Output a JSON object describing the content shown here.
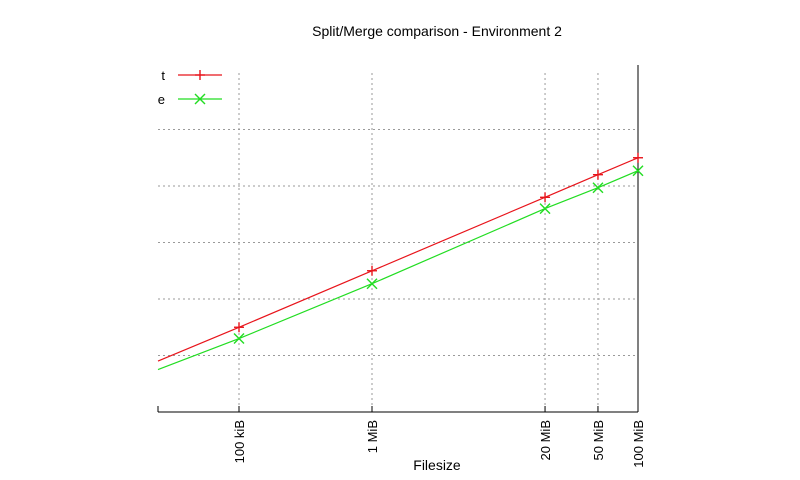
{
  "chart_data": {
    "type": "line",
    "title": "Split/Merge comparison - Environment 2",
    "xlabel": "Filesize",
    "ylabel": "",
    "x_scale": "log",
    "x_ticks": [
      {
        "value": 0.1,
        "label": "100 kiB"
      },
      {
        "value": 1,
        "label": "1 MiB"
      },
      {
        "value": 20,
        "label": "20 MiB"
      },
      {
        "value": 50,
        "label": "50 MiB"
      },
      {
        "value": 100,
        "label": "100 MiB"
      }
    ],
    "xlim": [
      0.0246,
      100
    ],
    "ylim": [
      0,
      6
    ],
    "grid": true,
    "legend": "top-left",
    "series": [
      {
        "name": "t",
        "color": "#e8141b",
        "marker": "plus",
        "x": [
          0.0246,
          0.1,
          1,
          20,
          50,
          100
        ],
        "y": [
          0.9,
          1.5,
          2.5,
          3.8,
          4.2,
          4.5
        ],
        "markers_at": [
          0.1,
          1,
          20,
          50,
          100
        ]
      },
      {
        "name": "e",
        "color": "#22dd22",
        "marker": "cross",
        "x": [
          0.0246,
          0.1,
          1,
          20,
          50,
          100
        ],
        "y": [
          0.75,
          1.3,
          2.27,
          3.6,
          3.97,
          4.27
        ],
        "markers_at": [
          0.1,
          1,
          20,
          50,
          100
        ]
      }
    ]
  }
}
